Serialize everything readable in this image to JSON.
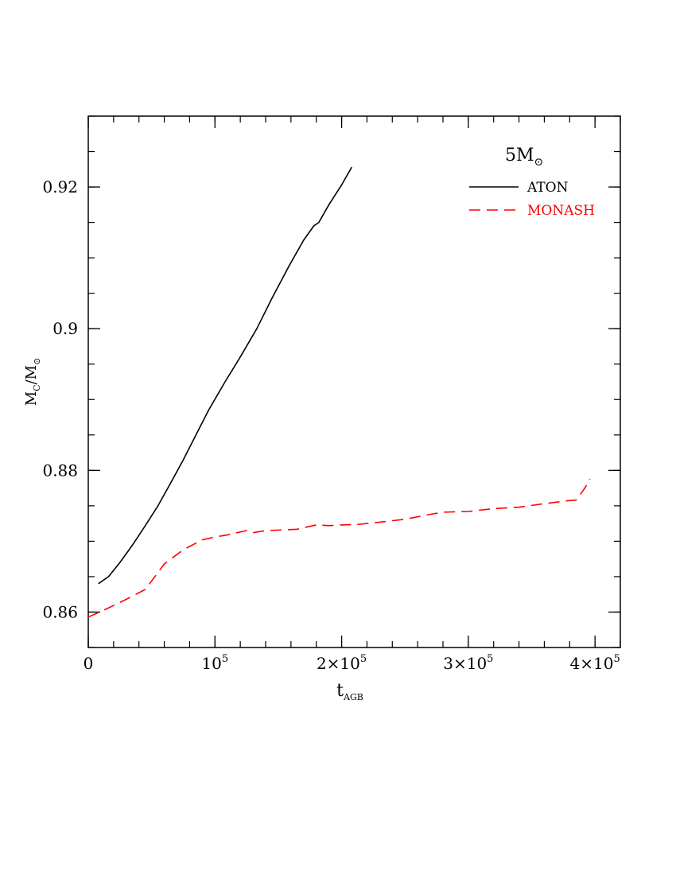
{
  "chart_data": {
    "type": "line",
    "title": "",
    "xlabel": {
      "main": "t",
      "sub": "AGB"
    },
    "ylabel": {
      "main": "M",
      "sub": "C",
      "sep": "/",
      "main2": "M",
      "sub2": "⊙"
    },
    "xlim": [
      0,
      420000
    ],
    "ylim": [
      0.855,
      0.93
    ],
    "x_ticks": [
      {
        "value": 0,
        "base": "0",
        "exp": ""
      },
      {
        "value": 100000,
        "base": "10",
        "exp": "5"
      },
      {
        "value": 200000,
        "base": "2×10",
        "exp": "5"
      },
      {
        "value": 300000,
        "base": "3×10",
        "exp": "5"
      },
      {
        "value": 400000,
        "base": "4×10",
        "exp": "5"
      }
    ],
    "x_minor_step": 20000,
    "y_ticks": [
      {
        "value": 0.86,
        "label": "0.86"
      },
      {
        "value": 0.88,
        "label": "0.88"
      },
      {
        "value": 0.9,
        "label": "0.9"
      },
      {
        "value": 0.92,
        "label": "0.92"
      }
    ],
    "y_minor_step": 0.005,
    "legend": {
      "placement": "top-right",
      "title": {
        "main": "5M",
        "sub": "⊙"
      }
    },
    "series": [
      {
        "name": "ATON",
        "color": "#000000",
        "dash": "solid",
        "x": [
          8000,
          16000,
          25000,
          35000,
          45000,
          55000,
          65000,
          75000,
          85000,
          95000,
          108000,
          120000,
          133000,
          145000,
          158000,
          170000,
          178000,
          182000,
          190000,
          200000,
          208000
        ],
        "y": [
          0.864,
          0.865,
          0.867,
          0.8695,
          0.8722,
          0.875,
          0.8782,
          0.8815,
          0.885,
          0.8885,
          0.8925,
          0.896,
          0.9,
          0.9043,
          0.9087,
          0.9125,
          0.9145,
          0.915,
          0.9175,
          0.9203,
          0.9228
        ]
      },
      {
        "name": "MONASH",
        "color": "#ff0000",
        "dash": "dashed",
        "x": [
          0,
          15000,
          30000,
          45000,
          60000,
          75000,
          90000,
          100000,
          110000,
          125000,
          130000,
          140000,
          155000,
          165000,
          180000,
          190000,
          200000,
          215000,
          230000,
          250000,
          270000,
          280000,
          300000,
          320000,
          340000,
          360000,
          378000,
          385000,
          392000,
          396000
        ],
        "y": [
          0.8593,
          0.8605,
          0.8618,
          0.8632,
          0.8668,
          0.8688,
          0.8702,
          0.8706,
          0.8709,
          0.8715,
          0.8712,
          0.8715,
          0.8716,
          0.8717,
          0.8723,
          0.8722,
          0.8723,
          0.8724,
          0.8727,
          0.8731,
          0.8738,
          0.8741,
          0.8742,
          0.8746,
          0.8748,
          0.8753,
          0.8757,
          0.8758,
          0.8775,
          0.8788
        ]
      }
    ]
  }
}
